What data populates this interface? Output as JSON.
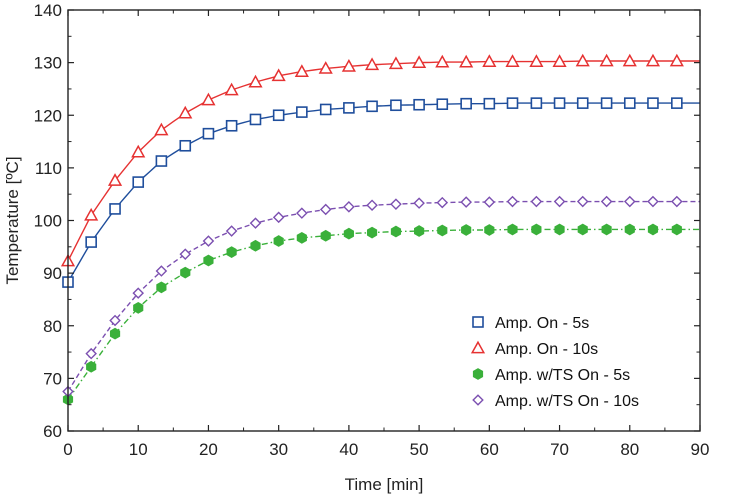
{
  "chart_data": {
    "type": "line",
    "xlabel": "Time [min]",
    "ylabel": "Temperature [ºC]",
    "xlim": [
      0,
      90
    ],
    "ylim": [
      60,
      140
    ],
    "xticks": [
      0,
      10,
      20,
      30,
      40,
      50,
      60,
      70,
      80,
      90
    ],
    "yticks": [
      60,
      70,
      80,
      90,
      100,
      110,
      120,
      130,
      140
    ],
    "grid": false,
    "legend_position": "bottom-right",
    "x": [
      0,
      3.3,
      6.7,
      10,
      13.3,
      16.7,
      20,
      23.3,
      26.7,
      30,
      33.3,
      36.7,
      40,
      43.3,
      46.7,
      50,
      53.3,
      56.7,
      60,
      63.3,
      66.7,
      70,
      73.3,
      76.7,
      80,
      83.3,
      86.7
    ],
    "series": [
      {
        "name": "Amp. On - 5s",
        "color": "#1f4e9c",
        "marker": "square-open",
        "line_style": "solid",
        "values": [
          88.3,
          95.9,
          102.2,
          107.3,
          111.3,
          114.2,
          116.5,
          118.0,
          119.2,
          120.0,
          120.6,
          121.1,
          121.4,
          121.7,
          121.9,
          122.0,
          122.1,
          122.2,
          122.2,
          122.3,
          122.3,
          122.3,
          122.3,
          122.3,
          122.3,
          122.3,
          122.3
        ]
      },
      {
        "name": "Amp. On - 10s",
        "color": "#e63232",
        "marker": "triangle-open",
        "line_style": "solid",
        "values": [
          92.3,
          101.0,
          107.6,
          113.0,
          117.2,
          120.4,
          122.9,
          124.8,
          126.3,
          127.5,
          128.3,
          128.9,
          129.3,
          129.6,
          129.8,
          130.0,
          130.1,
          130.1,
          130.2,
          130.2,
          130.2,
          130.2,
          130.3,
          130.3,
          130.3,
          130.3,
          130.3
        ]
      },
      {
        "name": "Amp. w/TS On - 5s",
        "color": "#3ab03a",
        "marker": "hexagon-filled",
        "line_style": "dashdot",
        "values": [
          66.0,
          72.2,
          78.5,
          83.4,
          87.3,
          90.1,
          92.4,
          94.0,
          95.2,
          96.1,
          96.7,
          97.1,
          97.5,
          97.7,
          97.9,
          98.0,
          98.1,
          98.2,
          98.2,
          98.3,
          98.3,
          98.3,
          98.3,
          98.3,
          98.3,
          98.3,
          98.3
        ]
      },
      {
        "name": "Amp. w/TS On - 10s",
        "color": "#7b4fb0",
        "marker": "diamond-open",
        "line_style": "dashed",
        "values": [
          67.5,
          74.7,
          81.0,
          86.2,
          90.4,
          93.6,
          96.1,
          98.0,
          99.5,
          100.6,
          101.4,
          102.1,
          102.6,
          102.9,
          103.1,
          103.3,
          103.4,
          103.5,
          103.5,
          103.6,
          103.6,
          103.6,
          103.6,
          103.6,
          103.6,
          103.6,
          103.6
        ]
      }
    ]
  }
}
